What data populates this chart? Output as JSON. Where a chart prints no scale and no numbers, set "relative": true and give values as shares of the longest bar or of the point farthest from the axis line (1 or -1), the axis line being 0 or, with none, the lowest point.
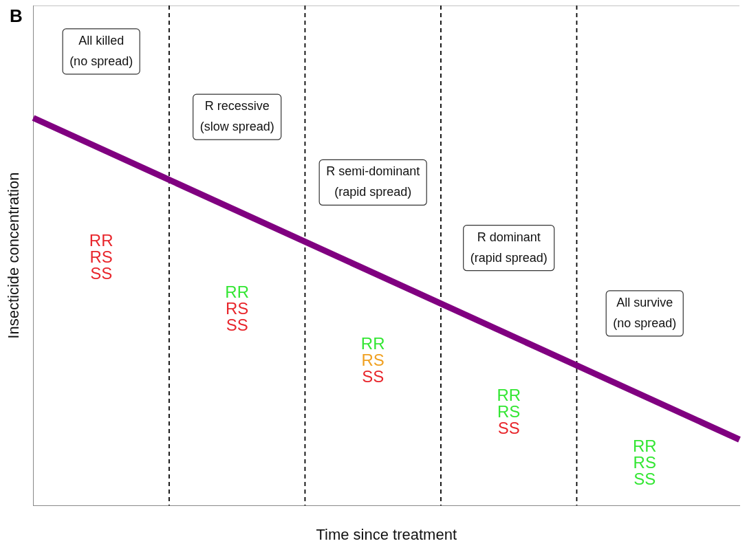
{
  "chart_data": {
    "type": "line",
    "title": "B",
    "xlabel": "Time since treatment",
    "ylabel": "Insecticide concentration",
    "relative": true,
    "grid": false,
    "legend": false,
    "marker": "none",
    "categories": [
      null,
      null
    ],
    "series": [
      {
        "values": [
          1,
          0.17
        ],
        "color": "#800080",
        "line_style": "solid"
      }
    ],
    "annotations": [
      "All killed\n(no spread)",
      "R recessive\n(slow spread)",
      "R semi-dominant\n(rapid spread)",
      "R dominant\n(rapid spread)",
      "All survive\n(no spread)",
      "RR",
      "RS",
      "SS",
      "RR",
      "RS",
      "SS",
      "RR",
      "RS",
      "SS",
      "RR",
      "RS",
      "SS",
      "RR",
      "RS",
      "SS"
    ]
  }
}
